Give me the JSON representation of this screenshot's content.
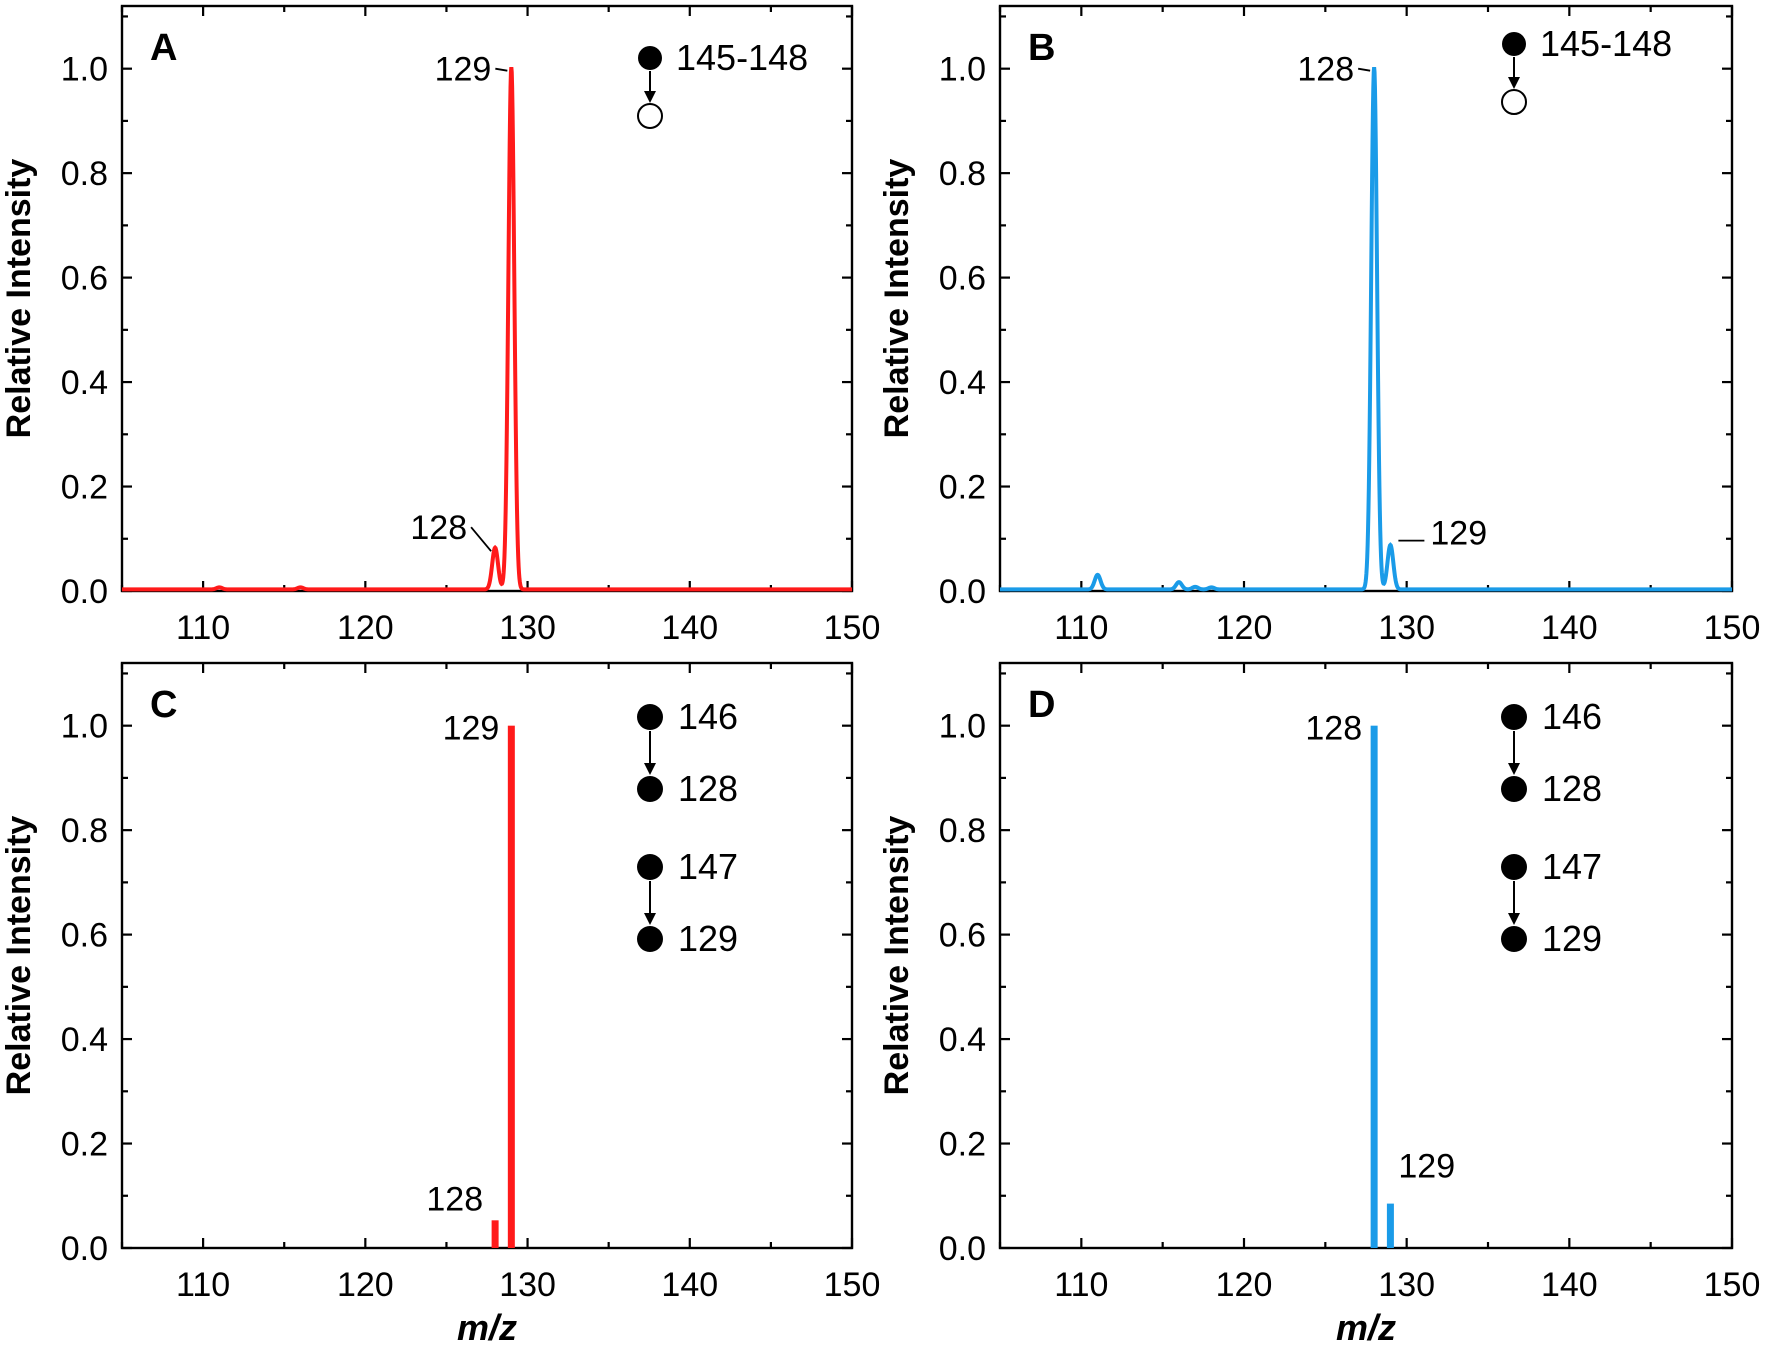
{
  "colors": {
    "red": "#ff1a1a",
    "blue": "#1a9be8"
  },
  "chart_data": [
    {
      "panel": "A",
      "type": "line",
      "xlabel": "",
      "ylabel": "Relative Intensity",
      "xlim": [
        105,
        150
      ],
      "ylim": [
        0,
        1.12
      ],
      "xticks": [
        110,
        120,
        130,
        140,
        150
      ],
      "yticks": [
        "0.0",
        "0.2",
        "0.4",
        "0.6",
        "0.8",
        "1.0"
      ],
      "color": "red",
      "peaks": [
        {
          "x": 111,
          "y": 0.004
        },
        {
          "x": 116,
          "y": 0.004
        },
        {
          "x": 128,
          "y": 0.08
        },
        {
          "x": 129,
          "y": 1.0
        }
      ],
      "annotations": [
        {
          "text": "129",
          "x": 129,
          "y": 1.0
        },
        {
          "text": "128",
          "x": 128,
          "y": 0.08
        }
      ],
      "inset": {
        "type": "filled-to-open",
        "top_label": "145-148"
      }
    },
    {
      "panel": "B",
      "type": "line",
      "xlabel": "",
      "ylabel": "Relative Intensity",
      "xlim": [
        105,
        150
      ],
      "ylim": [
        0,
        1.12
      ],
      "xticks": [
        110,
        120,
        130,
        140,
        150
      ],
      "yticks": [
        "0.0",
        "0.2",
        "0.4",
        "0.6",
        "0.8",
        "1.0"
      ],
      "color": "blue",
      "peaks": [
        {
          "x": 111,
          "y": 0.028
        },
        {
          "x": 116,
          "y": 0.014
        },
        {
          "x": 117,
          "y": 0.005
        },
        {
          "x": 118,
          "y": 0.004
        },
        {
          "x": 128,
          "y": 1.0
        },
        {
          "x": 129,
          "y": 0.085
        }
      ],
      "annotations": [
        {
          "text": "128",
          "x": 128,
          "y": 1.0
        },
        {
          "text": "129",
          "x": 129,
          "y": 0.085
        }
      ],
      "inset": {
        "type": "filled-to-open",
        "top_label": "145-148"
      }
    },
    {
      "panel": "C",
      "type": "bar",
      "xlabel": "m/z",
      "ylabel": "Relative Intensity",
      "xlim": [
        105,
        150
      ],
      "ylim": [
        0,
        1.12
      ],
      "xticks": [
        110,
        120,
        130,
        140,
        150
      ],
      "yticks": [
        "0.0",
        "0.2",
        "0.4",
        "0.6",
        "0.8",
        "1.0"
      ],
      "color": "red",
      "peaks": [
        {
          "x": 128,
          "y": 0.053
        },
        {
          "x": 129,
          "y": 1.0
        }
      ],
      "annotations": [
        {
          "text": "129",
          "x": 129,
          "y": 1.0
        },
        {
          "text": "128",
          "x": 128,
          "y": 0.053
        }
      ],
      "inset": {
        "type": "transitions",
        "pairs": [
          [
            "146",
            "128"
          ],
          [
            "147",
            "129"
          ]
        ]
      }
    },
    {
      "panel": "D",
      "type": "bar",
      "xlabel": "m/z",
      "ylabel": "Relative Intensity",
      "xlim": [
        105,
        150
      ],
      "ylim": [
        0,
        1.12
      ],
      "xticks": [
        110,
        120,
        130,
        140,
        150
      ],
      "yticks": [
        "0.0",
        "0.2",
        "0.4",
        "0.6",
        "0.8",
        "1.0"
      ],
      "color": "blue",
      "peaks": [
        {
          "x": 128,
          "y": 1.0
        },
        {
          "x": 129,
          "y": 0.085
        }
      ],
      "annotations": [
        {
          "text": "128",
          "x": 128,
          "y": 1.0
        },
        {
          "text": "129",
          "x": 129,
          "y": 0.085
        }
      ],
      "inset": {
        "type": "transitions",
        "pairs": [
          [
            "146",
            "128"
          ],
          [
            "147",
            "129"
          ]
        ]
      }
    }
  ]
}
